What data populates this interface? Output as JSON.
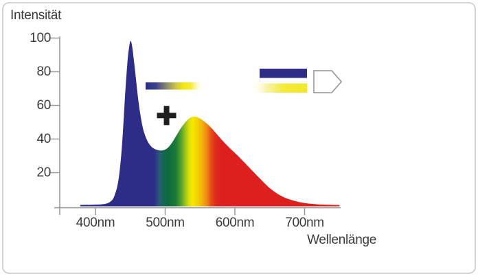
{
  "colors": {
    "axis": "#999999",
    "text": "#3A3A3A",
    "plus": "#1F1F1F",
    "frame_border": "#C8C8C8",
    "background": "#FFFFFF",
    "pentagon_stroke": "#909090",
    "navy": "#2D2C86",
    "red": "#DD1F1E",
    "yellow": "#F2E72E"
  },
  "legend": {
    "plus_sign": "+",
    "blue_bar_color": "#2D2C86",
    "mix_bar": {
      "stops": [
        {
          "at": 0,
          "color": "#2D2C86",
          "opacity": 1
        },
        {
          "at": 0.18,
          "color": "#3F4489",
          "opacity": 1
        },
        {
          "at": 0.36,
          "color": "#8A8A6F",
          "opacity": 1
        },
        {
          "at": 0.52,
          "color": "#CDC545",
          "opacity": 1
        },
        {
          "at": 0.64,
          "color": "#F0E80E",
          "opacity": 1
        },
        {
          "at": 0.78,
          "color": "#F5EC3A",
          "opacity": 1
        },
        {
          "at": 1,
          "color": "#FFFFFF",
          "opacity": 0
        }
      ]
    },
    "yellow_bar": {
      "stops": [
        {
          "at": 0,
          "color": "#FFFFFF",
          "opacity": 0
        },
        {
          "at": 0.3,
          "color": "#F7F1A0",
          "opacity": 0.9
        },
        {
          "at": 0.6,
          "color": "#F4EB35",
          "opacity": 1
        },
        {
          "at": 1,
          "color": "#F2E72E",
          "opacity": 1
        }
      ]
    },
    "led_symbol": "led-package-outline"
  },
  "chart_data": {
    "type": "area",
    "title": "",
    "xlabel": "Wellenlänge",
    "ylabel": "Intensität",
    "x_unit": "nm",
    "xlim": [
      378,
      750
    ],
    "ylim": [
      0,
      100
    ],
    "grid": false,
    "x_ticks": [
      {
        "value": 400,
        "label": "400nm"
      },
      {
        "value": 500,
        "label": "500nm"
      },
      {
        "value": 600,
        "label": "600nm"
      },
      {
        "value": 700,
        "label": "700nm"
      }
    ],
    "y_ticks": [
      100,
      80,
      60,
      40,
      20
    ],
    "series": [
      {
        "name": "white-led-spectrum",
        "fill": "spectral-gradient",
        "points": [
          [
            378,
            0.8
          ],
          [
            390,
            0.9
          ],
          [
            400,
            1
          ],
          [
            408,
            1.1
          ],
          [
            414,
            1.4
          ],
          [
            420,
            2.2
          ],
          [
            425,
            4
          ],
          [
            428,
            7
          ],
          [
            431,
            11
          ],
          [
            434,
            18
          ],
          [
            437,
            30
          ],
          [
            440,
            48
          ],
          [
            443,
            70
          ],
          [
            446,
            87
          ],
          [
            448,
            94
          ],
          [
            450,
            99
          ],
          [
            452,
            97
          ],
          [
            454,
            91
          ],
          [
            457,
            80
          ],
          [
            460,
            68
          ],
          [
            463,
            58
          ],
          [
            467,
            48
          ],
          [
            471,
            42
          ],
          [
            476,
            37.5
          ],
          [
            481,
            35
          ],
          [
            486,
            33.8
          ],
          [
            491,
            33.3
          ],
          [
            496,
            33.1
          ],
          [
            501,
            33.8
          ],
          [
            506,
            35.5
          ],
          [
            511,
            38.5
          ],
          [
            516,
            42
          ],
          [
            521,
            45.5
          ],
          [
            526,
            48.5
          ],
          [
            531,
            51
          ],
          [
            536,
            52.8
          ],
          [
            541,
            53.5
          ],
          [
            546,
            53
          ],
          [
            551,
            52
          ],
          [
            556,
            50.5
          ],
          [
            563,
            48
          ],
          [
            570,
            45
          ],
          [
            578,
            41
          ],
          [
            586,
            37.4
          ],
          [
            594,
            34
          ],
          [
            602,
            31
          ],
          [
            610,
            27.6
          ],
          [
            618,
            24.2
          ],
          [
            626,
            20.7
          ],
          [
            634,
            17.3
          ],
          [
            642,
            13.9
          ],
          [
            650,
            10.7
          ],
          [
            658,
            8.2
          ],
          [
            666,
            6.2
          ],
          [
            674,
            4.7
          ],
          [
            682,
            3.6
          ],
          [
            690,
            2.7
          ],
          [
            698,
            2.1
          ],
          [
            706,
            1.6
          ],
          [
            714,
            1.3
          ],
          [
            722,
            1.1
          ],
          [
            730,
            0.95
          ],
          [
            738,
            0.85
          ],
          [
            745,
            0.8
          ],
          [
            750,
            0.8
          ]
        ]
      }
    ],
    "spectrum_gradient": [
      {
        "nm": 378,
        "color": "#2D2C86"
      },
      {
        "nm": 484,
        "color": "#2D2C86"
      },
      {
        "nm": 492,
        "color": "#275D75"
      },
      {
        "nm": 499,
        "color": "#10684C"
      },
      {
        "nm": 505,
        "color": "#0E6B3A"
      },
      {
        "nm": 515,
        "color": "#1B7A38"
      },
      {
        "nm": 522,
        "color": "#4D9C2B"
      },
      {
        "nm": 528,
        "color": "#8FC01E"
      },
      {
        "nm": 534,
        "color": "#DCDC05"
      },
      {
        "nm": 539,
        "color": "#F5E800"
      },
      {
        "nm": 546,
        "color": "#F4D304"
      },
      {
        "nm": 553,
        "color": "#F2B10C"
      },
      {
        "nm": 560,
        "color": "#EE8714"
      },
      {
        "nm": 566,
        "color": "#E74A19"
      },
      {
        "nm": 573,
        "color": "#DF281C"
      },
      {
        "nm": 581,
        "color": "#DD201E"
      },
      {
        "nm": 750,
        "color": "#DD1F1E"
      }
    ],
    "annotations": [
      {
        "symbol": "+",
        "x_nm": 502,
        "y": 54
      }
    ]
  }
}
